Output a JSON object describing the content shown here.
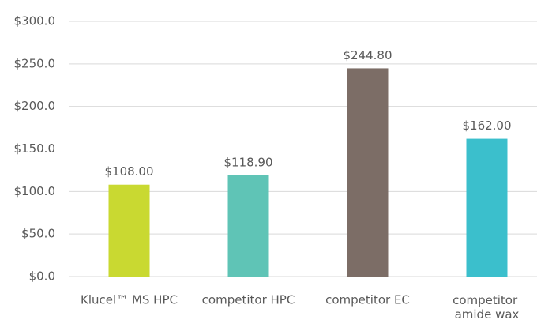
{
  "chart_data": {
    "type": "bar",
    "categories": [
      "Klucel™ MS HPC",
      "competitor HPC",
      "competitor EC",
      "competitor amide wax"
    ],
    "values": [
      108.0,
      118.9,
      244.8,
      162.0
    ],
    "value_labels": [
      "$108.00",
      "$118.90",
      "$244.80",
      "$162.00"
    ],
    "colors": [
      "#c9d931",
      "#5fc4b6",
      "#7c6d66",
      "#3bbfcc"
    ],
    "ylim": [
      0,
      300
    ],
    "yticks": [
      {
        "value": 0,
        "label": "$0.0"
      },
      {
        "value": 50,
        "label": "$50.0"
      },
      {
        "value": 100,
        "label": "$100.0"
      },
      {
        "value": 150,
        "label": "$150.0"
      },
      {
        "value": 200,
        "label": "$200.0"
      },
      {
        "value": 250,
        "label": "$250.0"
      },
      {
        "value": 300,
        "label": "$300.0"
      }
    ],
    "grid": true
  }
}
